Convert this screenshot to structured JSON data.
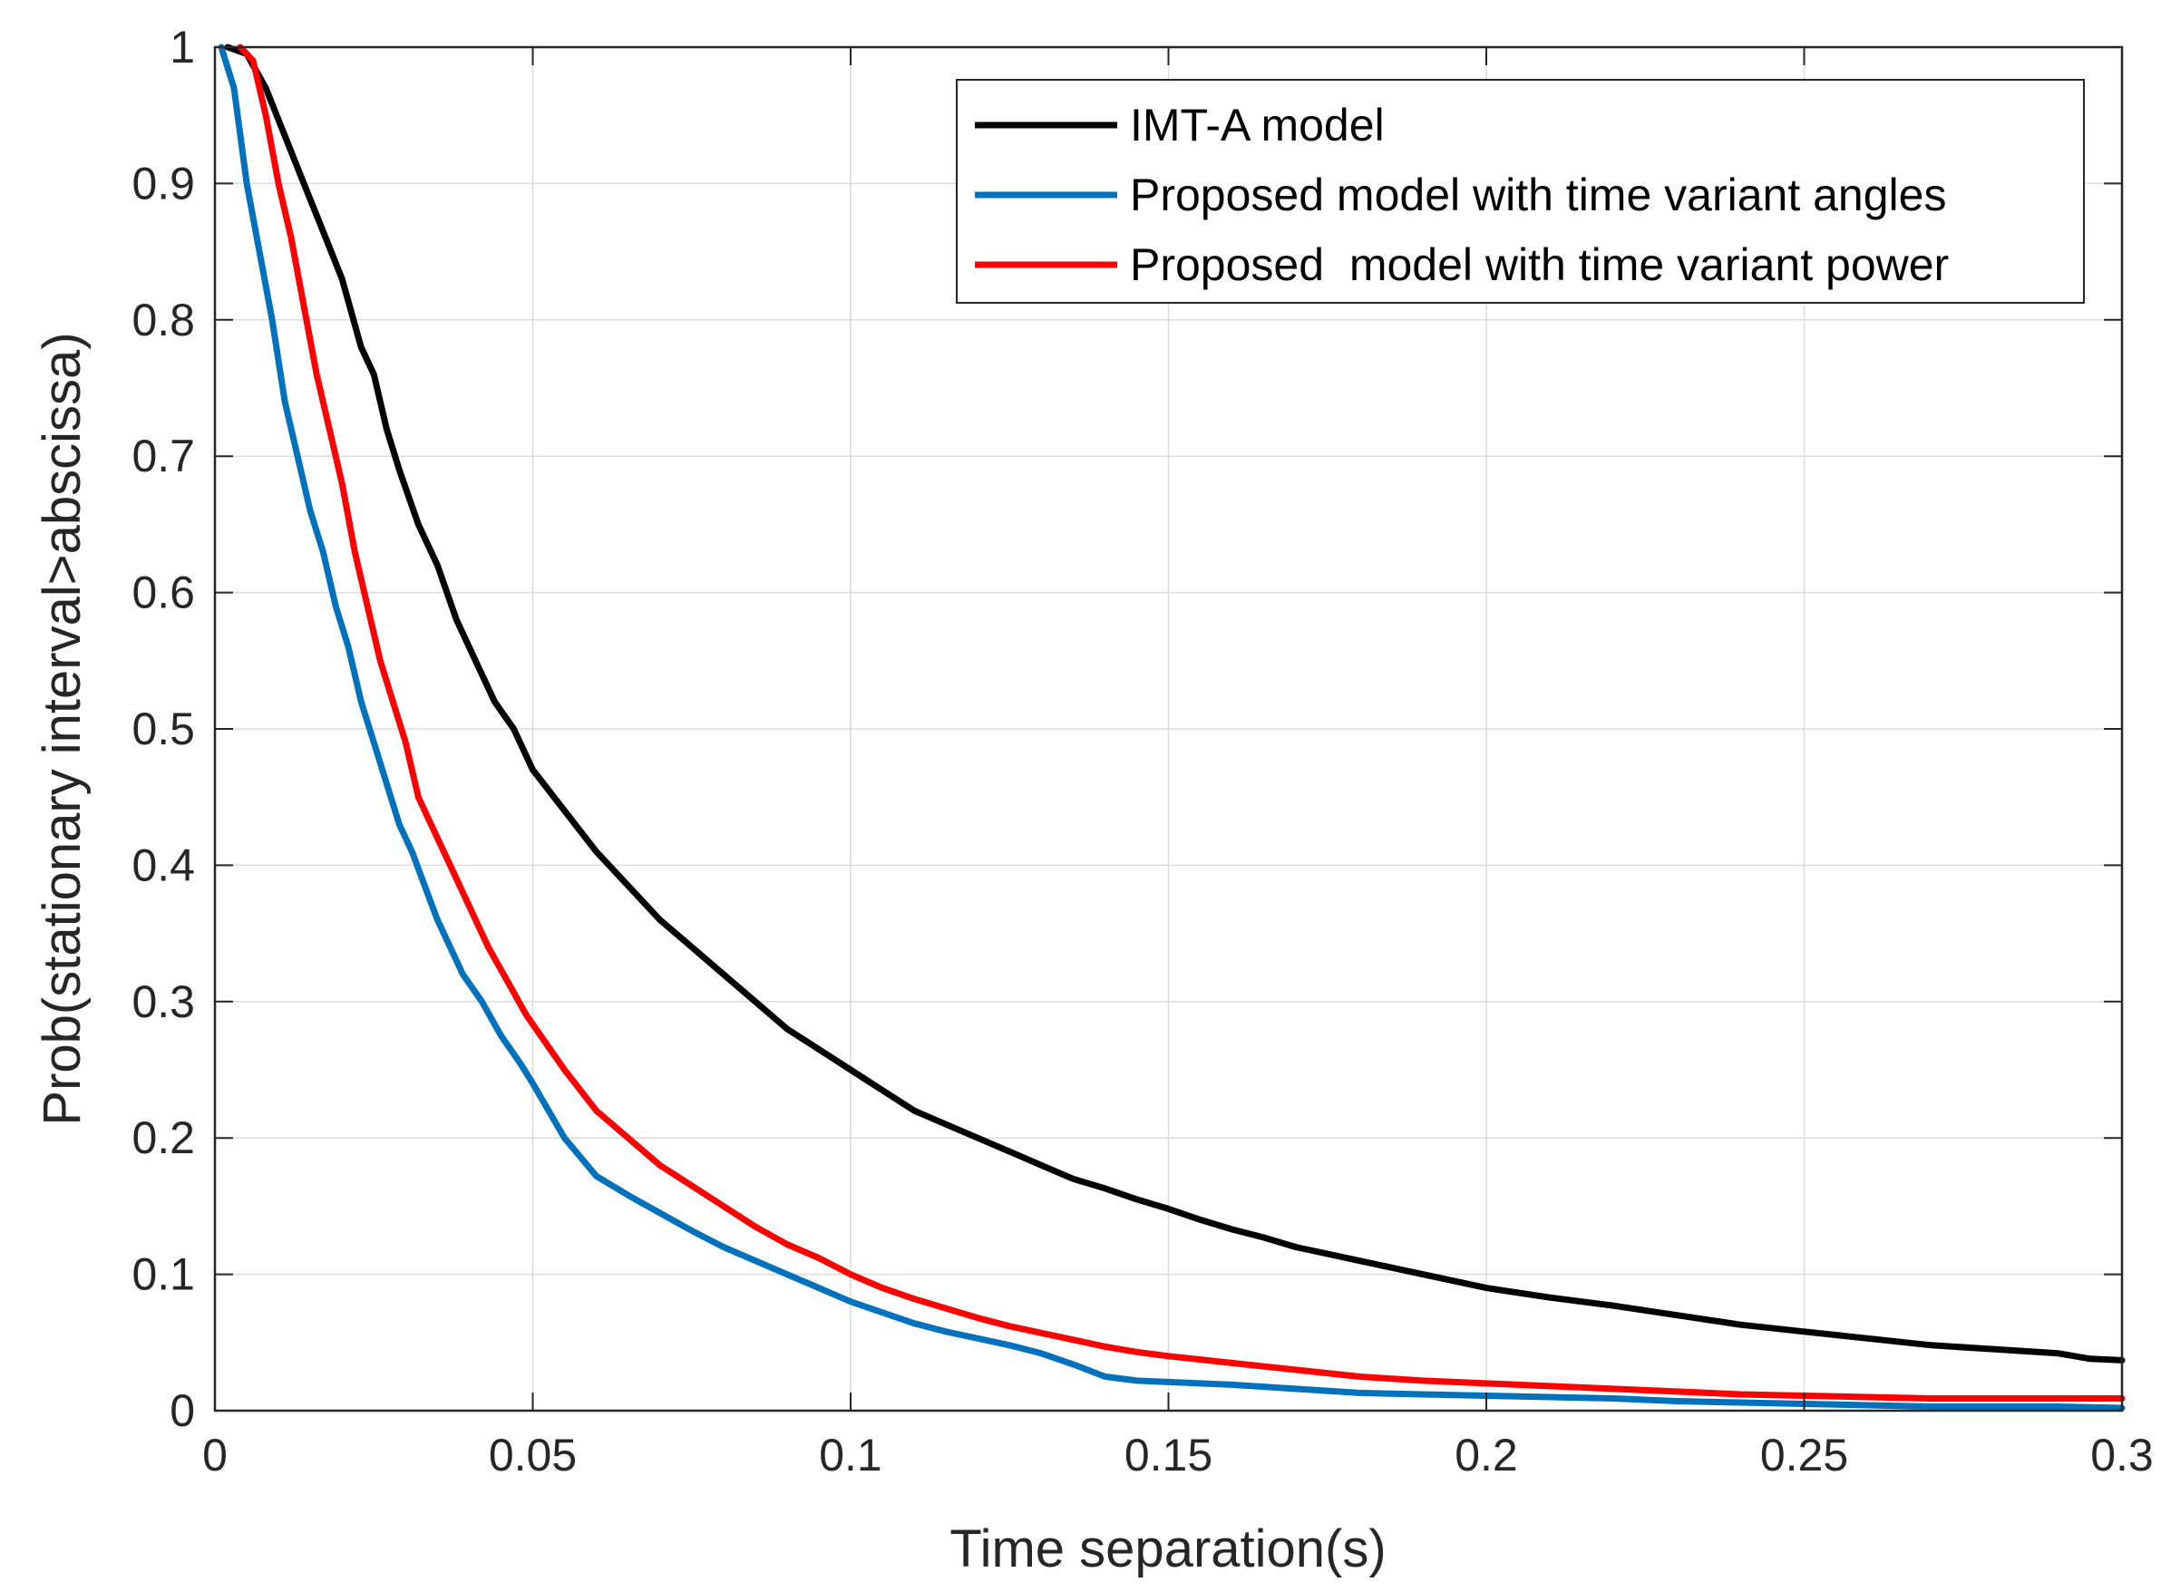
{
  "chart_data": {
    "type": "line",
    "title": "",
    "xlabel": "Time separation(s)",
    "ylabel": "Prob(stationary interval>abscissa)",
    "xlim": [
      0,
      0.3
    ],
    "ylim": [
      0,
      1
    ],
    "grid": true,
    "legend_position": "top-right",
    "x_ticks": [
      0,
      0.05,
      0.1,
      0.15,
      0.2,
      0.25,
      0.3
    ],
    "x_tick_labels": [
      "0",
      "0.05",
      "0.1",
      "0.15",
      "0.2",
      "0.25",
      "0.3"
    ],
    "y_ticks": [
      0,
      0.1,
      0.2,
      0.3,
      0.4,
      0.5,
      0.6,
      0.7,
      0.8,
      0.9,
      1
    ],
    "y_tick_labels": [
      "0",
      "0.1",
      "0.2",
      "0.3",
      "0.4",
      "0.5",
      "0.6",
      "0.7",
      "0.8",
      "0.9",
      "1"
    ],
    "series": [
      {
        "name": "IMT-A model",
        "color": "#000000",
        "x": [
          0.002,
          0.005,
          0.008,
          0.011,
          0.014,
          0.017,
          0.02,
          0.023,
          0.025,
          0.027,
          0.029,
          0.032,
          0.035,
          0.038,
          0.041,
          0.044,
          0.047,
          0.05,
          0.055,
          0.06,
          0.065,
          0.07,
          0.075,
          0.08,
          0.085,
          0.09,
          0.095,
          0.1,
          0.105,
          0.11,
          0.115,
          0.12,
          0.125,
          0.13,
          0.135,
          0.14,
          0.145,
          0.15,
          0.155,
          0.16,
          0.165,
          0.17,
          0.175,
          0.18,
          0.185,
          0.19,
          0.195,
          0.2,
          0.21,
          0.22,
          0.23,
          0.24,
          0.25,
          0.26,
          0.27,
          0.28,
          0.29,
          0.295,
          0.3
        ],
        "y": [
          1.0,
          0.995,
          0.97,
          0.935,
          0.9,
          0.865,
          0.83,
          0.78,
          0.76,
          0.72,
          0.69,
          0.65,
          0.62,
          0.58,
          0.55,
          0.52,
          0.5,
          0.47,
          0.44,
          0.41,
          0.385,
          0.36,
          0.34,
          0.32,
          0.3,
          0.28,
          0.265,
          0.25,
          0.235,
          0.22,
          0.21,
          0.2,
          0.19,
          0.18,
          0.17,
          0.163,
          0.155,
          0.148,
          0.14,
          0.133,
          0.127,
          0.12,
          0.115,
          0.11,
          0.105,
          0.1,
          0.095,
          0.09,
          0.083,
          0.077,
          0.07,
          0.063,
          0.058,
          0.053,
          0.048,
          0.045,
          0.042,
          0.038,
          0.037
        ]
      },
      {
        "name": "Proposed model with time variant angles",
        "color": "#0072BD",
        "x": [
          0.001,
          0.003,
          0.005,
          0.007,
          0.009,
          0.011,
          0.013,
          0.015,
          0.017,
          0.019,
          0.021,
          0.023,
          0.025,
          0.027,
          0.029,
          0.031,
          0.033,
          0.035,
          0.037,
          0.039,
          0.042,
          0.045,
          0.048,
          0.05,
          0.055,
          0.06,
          0.065,
          0.07,
          0.075,
          0.08,
          0.085,
          0.09,
          0.095,
          0.1,
          0.105,
          0.11,
          0.115,
          0.12,
          0.125,
          0.13,
          0.135,
          0.14,
          0.145,
          0.15,
          0.16,
          0.17,
          0.18,
          0.19,
          0.2,
          0.21,
          0.22,
          0.23,
          0.24,
          0.25,
          0.26,
          0.27,
          0.28,
          0.29,
          0.3
        ],
        "y": [
          1.0,
          0.97,
          0.9,
          0.85,
          0.8,
          0.74,
          0.7,
          0.66,
          0.63,
          0.59,
          0.56,
          0.52,
          0.49,
          0.46,
          0.43,
          0.41,
          0.385,
          0.36,
          0.34,
          0.32,
          0.3,
          0.275,
          0.255,
          0.24,
          0.2,
          0.172,
          0.158,
          0.145,
          0.132,
          0.12,
          0.11,
          0.1,
          0.09,
          0.08,
          0.072,
          0.064,
          0.058,
          0.053,
          0.048,
          0.042,
          0.034,
          0.025,
          0.022,
          0.021,
          0.019,
          0.016,
          0.013,
          0.012,
          0.011,
          0.01,
          0.009,
          0.007,
          0.006,
          0.005,
          0.004,
          0.003,
          0.003,
          0.003,
          0.002
        ]
      },
      {
        "name": "Proposed  model with time variant power",
        "color": "#FF0000",
        "x": [
          0.004,
          0.006,
          0.008,
          0.01,
          0.012,
          0.014,
          0.016,
          0.018,
          0.02,
          0.022,
          0.024,
          0.026,
          0.028,
          0.03,
          0.032,
          0.034,
          0.036,
          0.038,
          0.04,
          0.043,
          0.046,
          0.049,
          0.052,
          0.055,
          0.06,
          0.065,
          0.07,
          0.075,
          0.08,
          0.085,
          0.09,
          0.095,
          0.1,
          0.105,
          0.11,
          0.115,
          0.12,
          0.125,
          0.13,
          0.135,
          0.14,
          0.145,
          0.15,
          0.16,
          0.17,
          0.18,
          0.19,
          0.2,
          0.21,
          0.22,
          0.23,
          0.24,
          0.25,
          0.26,
          0.27,
          0.28,
          0.29,
          0.3
        ],
        "y": [
          1.0,
          0.99,
          0.95,
          0.9,
          0.86,
          0.81,
          0.76,
          0.72,
          0.68,
          0.63,
          0.59,
          0.55,
          0.52,
          0.49,
          0.45,
          0.43,
          0.41,
          0.39,
          0.37,
          0.34,
          0.315,
          0.29,
          0.27,
          0.25,
          0.22,
          0.2,
          0.18,
          0.165,
          0.15,
          0.135,
          0.122,
          0.112,
          0.1,
          0.09,
          0.082,
          0.075,
          0.068,
          0.062,
          0.057,
          0.052,
          0.047,
          0.043,
          0.04,
          0.035,
          0.03,
          0.025,
          0.022,
          0.02,
          0.018,
          0.016,
          0.014,
          0.012,
          0.011,
          0.01,
          0.009,
          0.009,
          0.009,
          0.009
        ]
      }
    ]
  }
}
